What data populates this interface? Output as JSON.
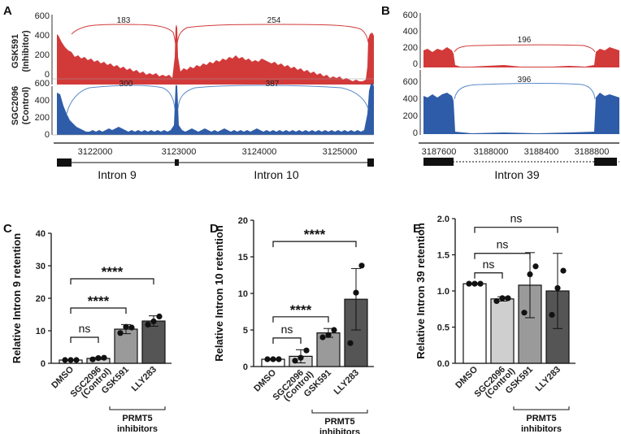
{
  "panels": {
    "A": "A",
    "B": "B",
    "C": "C",
    "D": "D",
    "E": "E"
  },
  "colors": {
    "inhibitor": "#d23a3a",
    "control": "#2f5ca8",
    "arc_inhibitor": "#d23a3a",
    "arc_control": "#5b88c9",
    "bar_dmso": "#ffffff",
    "bar_sgc": "#cfcfcf",
    "bar_gsk": "#9a9a9a",
    "bar_lly": "#555555"
  },
  "sashimi": {
    "track_labels": {
      "inhibitor_1": "GSK591",
      "inhibitor_2": "(Inhibitor)",
      "control_1": "SGC2096",
      "control_2": "(Control)"
    },
    "A": {
      "y_ticks": [
        "600",
        "400",
        "200",
        "0"
      ],
      "x_ticks": [
        "3122000",
        "3123000",
        "3124000",
        "3125000"
      ],
      "inhibitor_junctions": [
        "183",
        "254"
      ],
      "control_junctions": [
        "300",
        "387"
      ],
      "introns": [
        "Intron 9",
        "Intron 10"
      ]
    },
    "B": {
      "y_ticks": [
        "600",
        "400",
        "200",
        "0"
      ],
      "x_ticks": [
        "3187600",
        "3188000",
        "3188400",
        "3188800"
      ],
      "inhibitor_junctions": [
        "196"
      ],
      "control_junctions": [
        "396"
      ],
      "introns": [
        "Intron 39"
      ]
    }
  },
  "chart_data": [
    {
      "type": "bar",
      "panel": "C",
      "ylabel": "Relative Intron 9 retention",
      "ylim": [
        0,
        40
      ],
      "yticks": [
        "0",
        "10",
        "20",
        "30",
        "40"
      ],
      "categories": [
        "DMSO",
        "SGC2096",
        "GSK591",
        "LLY283"
      ],
      "sublabels": [
        "",
        "(Control)",
        "",
        ""
      ],
      "values": [
        1.0,
        1.5,
        10.5,
        13.0
      ],
      "errors": [
        0.1,
        0.3,
        1.4,
        1.6
      ],
      "points": [
        [
          1.0,
          1.0,
          1.0
        ],
        [
          1.2,
          1.6,
          1.7
        ],
        [
          9.3,
          11.2,
          11.0
        ],
        [
          11.9,
          12.9,
          14.4
        ]
      ],
      "significance": [
        {
          "label": "ns",
          "from": 0,
          "to": 1,
          "y": 8
        },
        {
          "label": "****",
          "from": 0,
          "to": 2,
          "y": 17
        },
        {
          "label": "****",
          "from": 0,
          "to": 3,
          "y": 26
        }
      ],
      "group_label_1": "PRMT5",
      "group_label_2": "inhibitors"
    },
    {
      "type": "bar",
      "panel": "D",
      "ylabel": "Relative Intron 10 retention",
      "ylim": [
        0,
        20
      ],
      "yticks": [
        "0",
        "5",
        "10",
        "15",
        "20"
      ],
      "categories": [
        "DMSO",
        "SGC2096",
        "GSK591",
        "LLY283"
      ],
      "sublabels": [
        "",
        "(Control)",
        "",
        ""
      ],
      "values": [
        1.0,
        1.4,
        4.6,
        9.2
      ],
      "errors": [
        0.1,
        0.9,
        0.6,
        4.2
      ],
      "points": [
        [
          1.0,
          1.0,
          1.0
        ],
        [
          0.8,
          1.2,
          2.2
        ],
        [
          4.0,
          4.3,
          5.0
        ],
        [
          3.2,
          10.1,
          13.8
        ]
      ],
      "significance": [
        {
          "label": "ns",
          "from": 0,
          "to": 1,
          "y": 3.9
        },
        {
          "label": "****",
          "from": 0,
          "to": 2,
          "y": 6.8
        },
        {
          "label": "****",
          "from": 0,
          "to": 3,
          "y": 17.1
        }
      ],
      "group_label_1": "PRMT5",
      "group_label_2": "inhibitors"
    },
    {
      "type": "bar",
      "panel": "E",
      "ylabel": "Relative Intron 39 retention",
      "ylim": [
        0,
        2.0
      ],
      "yticks": [
        "0.0",
        "0.5",
        "1.0",
        "1.5",
        "2.0"
      ],
      "categories": [
        "DMSO",
        "SGC2096",
        "GSK591",
        "LLY283"
      ],
      "sublabels": [
        "",
        "(Control)",
        "",
        ""
      ],
      "values": [
        1.1,
        0.89,
        1.08,
        1.0
      ],
      "errors": [
        0.01,
        0.03,
        0.45,
        0.52
      ],
      "points": [
        [
          1.1,
          1.1,
          1.1
        ],
        [
          0.86,
          0.9,
          0.9
        ],
        [
          0.7,
          1.23,
          1.34
        ],
        [
          0.67,
          1.04,
          1.28
        ]
      ],
      "significance": [
        {
          "label": "ns",
          "from": 0,
          "to": 1,
          "y": 1.25
        },
        {
          "label": "ns",
          "from": 0,
          "to": 2,
          "y": 1.52
        },
        {
          "label": "ns",
          "from": 0,
          "to": 3,
          "y": 1.88
        }
      ],
      "group_label_1": "PRMT5",
      "group_label_2": "inhibitors"
    }
  ]
}
